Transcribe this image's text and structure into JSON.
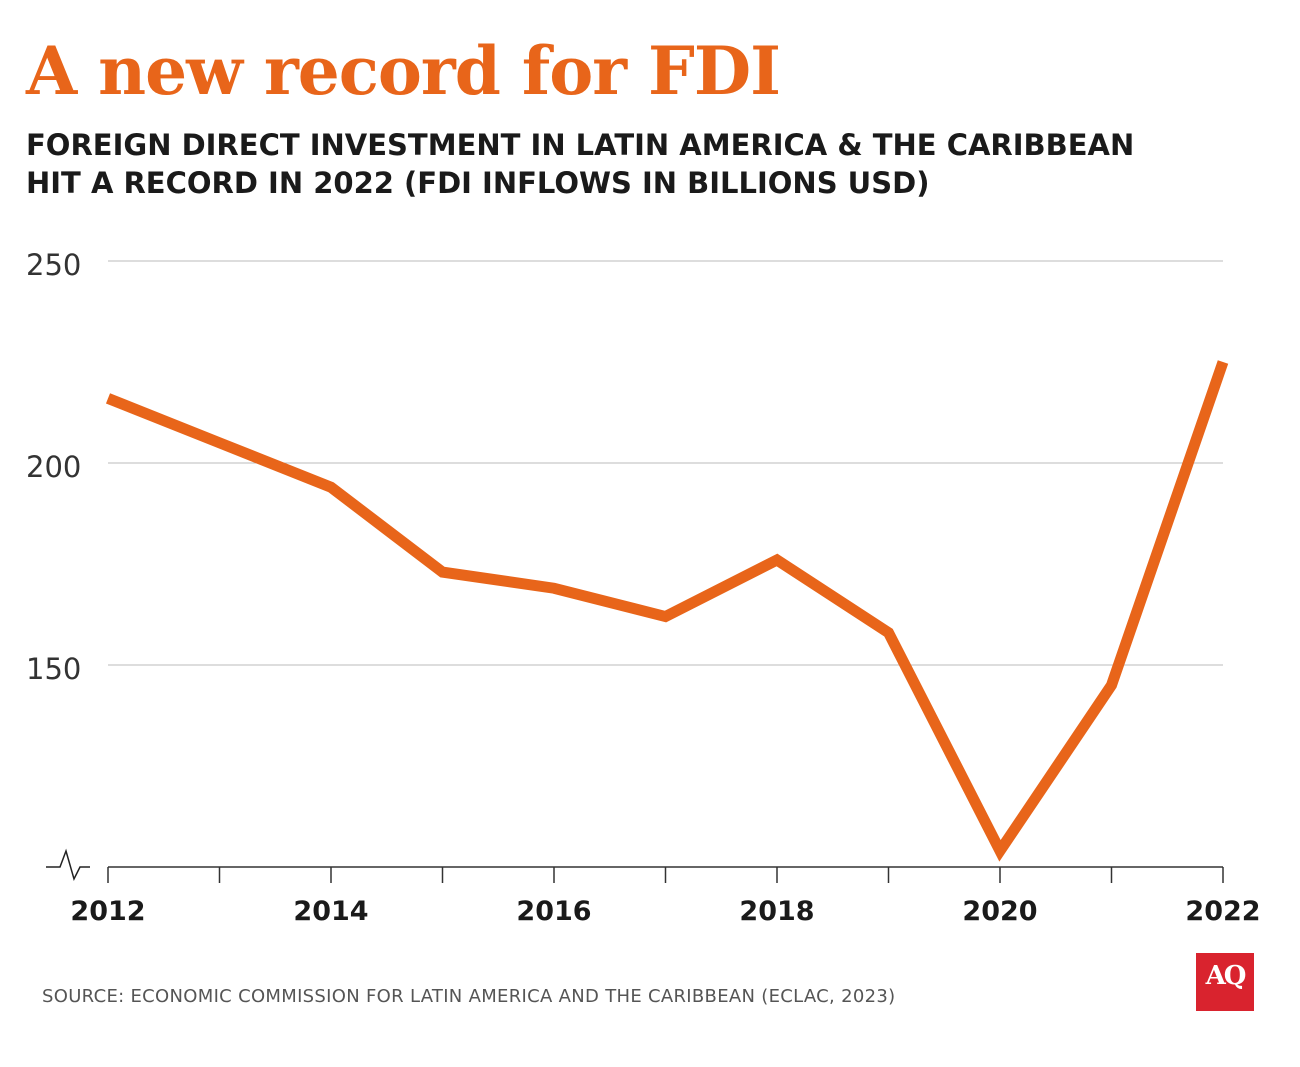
{
  "title": "A new record for FDI",
  "subtitle_lines": [
    "FOREIGN DIRECT INVESTMENT IN LATIN AMERICA & THE CARIBBEAN",
    "HIT A RECORD IN 2022 (FDI INFLOWS IN BILLIONS USD)"
  ],
  "source": "SOURCE: ECONOMIC COMMISSION FOR LATIN AMERICA AND THE CARIBBEAN (ECLAC, 2023)",
  "logo_text": "AQ",
  "colors": {
    "line": "#e8651a",
    "title": "#e8651a",
    "grid": "#bbbbbb",
    "axis": "#333333",
    "logo_bg": "#d9232e"
  },
  "chart_data": {
    "type": "line",
    "x": [
      2012,
      2013,
      2014,
      2015,
      2016,
      2017,
      2018,
      2019,
      2020,
      2021,
      2022
    ],
    "series": [
      {
        "values": [
          216,
          205,
          194,
          173,
          169,
          162,
          176,
          158,
          104,
          145,
          225
        ]
      }
    ],
    "x_tick_labels": [
      "2012",
      "2014",
      "2016",
      "2018",
      "2020",
      "2022"
    ],
    "y_tick_labels": [
      "250",
      "200",
      "150"
    ],
    "ylim": [
      100,
      250
    ],
    "y_axis_break": true,
    "grid": true,
    "xlabel": "",
    "ylabel": ""
  }
}
